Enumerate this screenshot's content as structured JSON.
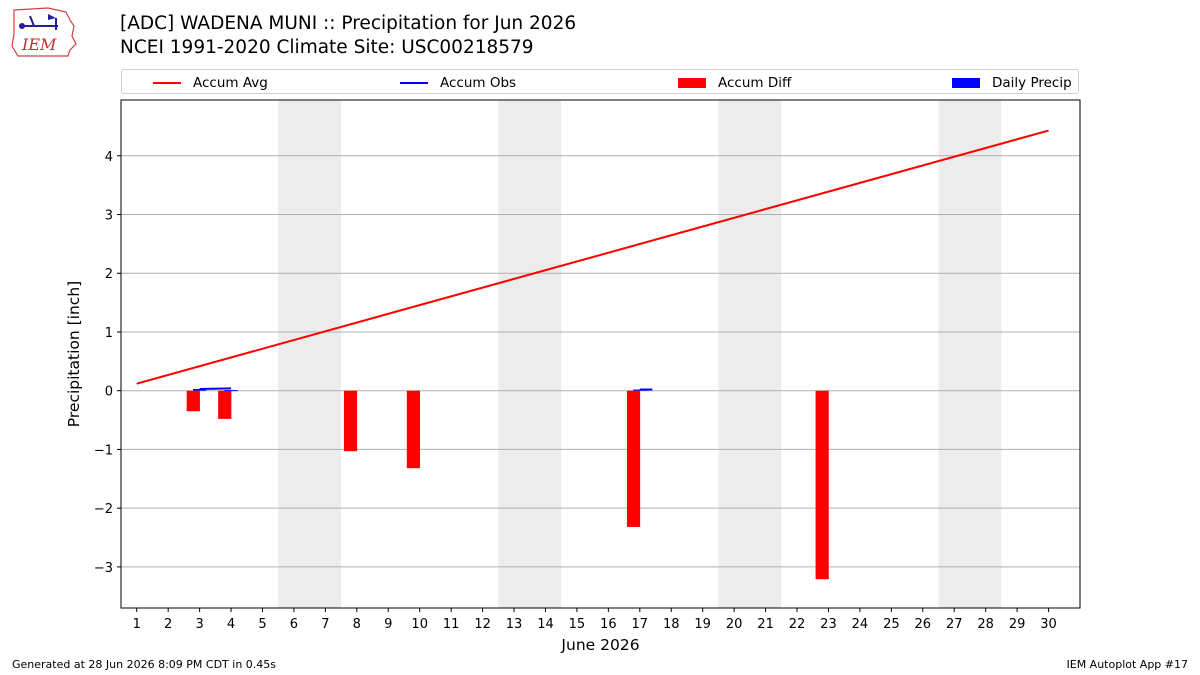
{
  "logo": {
    "text": "IEM"
  },
  "title_line1": "[ADC] WADENA MUNI :: Precipitation for Jun 2026",
  "title_line2": "NCEI 1991-2020 Climate Site: USC00218579",
  "legend": [
    {
      "label": "Accum Avg",
      "kind": "line",
      "color": "#ff0000"
    },
    {
      "label": "Accum Obs",
      "kind": "line",
      "color": "#0000ff"
    },
    {
      "label": "Accum Diff",
      "kind": "patch",
      "color": "#ff0000"
    },
    {
      "label": "Daily Precip",
      "kind": "patch",
      "color": "#0000ff"
    }
  ],
  "footer": {
    "generated": "Generated at 28 Jun 2026 8:09 PM CDT in 0.45s",
    "app": "IEM Autoplot App #17"
  },
  "chart_data": {
    "type": "bar",
    "xlabel": "June 2026",
    "ylabel": "Precipitation [inch]",
    "xlim": [
      0.5,
      31
    ],
    "ylim": [
      -3.7,
      4.95
    ],
    "x_ticks": [
      1,
      2,
      3,
      4,
      5,
      6,
      7,
      8,
      9,
      10,
      11,
      12,
      13,
      14,
      15,
      16,
      17,
      18,
      19,
      20,
      21,
      22,
      23,
      24,
      25,
      26,
      27,
      28,
      29,
      30
    ],
    "y_ticks": [
      -3,
      -2,
      -1,
      0,
      1,
      2,
      3,
      4
    ],
    "y_tick_labels": [
      "−3",
      "−2",
      "−1",
      "0",
      "1",
      "2",
      "3",
      "4"
    ],
    "grid": "horizontal",
    "weekend_shading": [
      [
        5.5,
        7.5
      ],
      [
        12.5,
        14.5
      ],
      [
        19.5,
        21.5
      ],
      [
        26.5,
        28.5
      ]
    ],
    "accum_avg": {
      "x": [
        1,
        30
      ],
      "y": [
        0.12,
        4.43
      ],
      "color": "#ff0000"
    },
    "accum_obs": [
      {
        "x": [
          3.0,
          4.0
        ],
        "y": [
          0.03,
          0.04
        ]
      },
      {
        "x": [
          17.0,
          17.4
        ],
        "y": [
          0.02,
          0.02
        ]
      }
    ],
    "accum_diff": [
      {
        "x": 2.8,
        "value": -0.35
      },
      {
        "x": 3.8,
        "value": -0.48
      },
      {
        "x": 7.8,
        "value": -1.03
      },
      {
        "x": 9.8,
        "value": -1.32
      },
      {
        "x": 16.8,
        "value": -2.32
      },
      {
        "x": 22.8,
        "value": -3.21
      }
    ],
    "daily_precip": [
      {
        "x": 3.0,
        "value": 0.03
      },
      {
        "x": 4.0,
        "value": 0.01
      },
      {
        "x": 17.0,
        "value": 0.02
      }
    ],
    "colors": {
      "avg": "#ff0000",
      "obs": "#0000ff",
      "diff": "#ff0000",
      "precip": "#0000ff",
      "weekend": "#ececec",
      "grid": "#b0b0b0"
    }
  }
}
